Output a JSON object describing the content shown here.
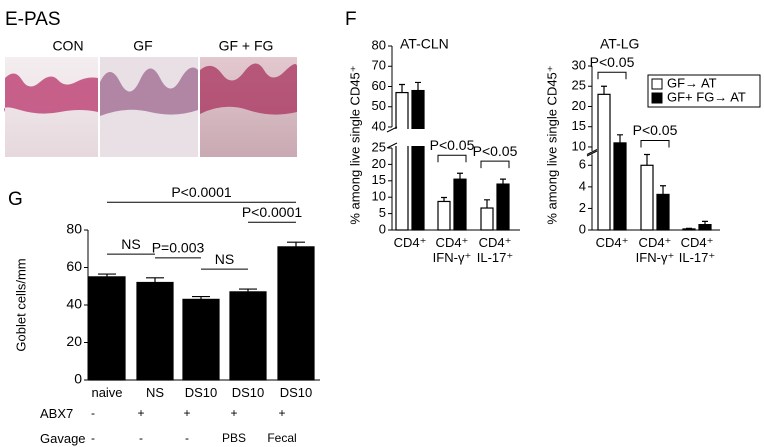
{
  "panel_e": {
    "label": "E-PAS",
    "images": [
      {
        "label": "CON"
      },
      {
        "label": "GF"
      },
      {
        "label": "GF + FG"
      }
    ]
  },
  "chart_data": [
    {
      "type": "bar",
      "panel_label": "F",
      "title": "AT-CLN",
      "y_label": "% among live single CD45⁺",
      "categories": [
        "CD4⁺",
        "CD4⁺\nIFN-γ⁺",
        "CD4⁺\nIL-17⁺"
      ],
      "series": [
        {
          "color": "#ffffff",
          "values": [
            57,
            8.7,
            6.7
          ],
          "errors": [
            4,
            1.2,
            2.5
          ]
        },
        {
          "color": "#000000",
          "values": [
            58,
            15.5,
            14
          ],
          "errors": [
            4,
            1.8,
            1.5
          ]
        }
      ],
      "ylim": [
        0,
        80
      ],
      "yticks": [
        0,
        5,
        10,
        15,
        20,
        25,
        40,
        50,
        60,
        70,
        80
      ],
      "axis_break": [
        25,
        40
      ],
      "annotations": [
        {
          "label": "P<0.05",
          "from": 1,
          "to": 1
        },
        {
          "label": "P<0.05",
          "from": 2,
          "to": 2
        }
      ]
    },
    {
      "type": "bar",
      "title": "AT-LG",
      "y_label": "% among live single CD45⁺",
      "categories": [
        "CD4⁺",
        "CD4⁺\nIFN-γ⁺",
        "CD4⁺\nIL-17⁺"
      ],
      "series": [
        {
          "name": "GF→ AT",
          "color": "#ffffff",
          "values": [
            23,
            6,
            0.1
          ],
          "errors": [
            2,
            1,
            0.05
          ]
        },
        {
          "name": "GF+ FG→ AT",
          "color": "#000000",
          "values": [
            11,
            3.3,
            0.5
          ],
          "errors": [
            2,
            0.8,
            0.3
          ]
        }
      ],
      "ylim": [
        0,
        30
      ],
      "yticks": [
        0,
        2,
        4,
        6,
        10,
        15,
        20,
        25,
        30
      ],
      "axis_break": [
        7,
        9
      ],
      "legend": "upper right",
      "annotations": [
        {
          "label": "P<0.05",
          "from": 0,
          "to": 0
        },
        {
          "label": "P<0.05",
          "from": 1,
          "to": 1
        }
      ]
    },
    {
      "type": "bar",
      "panel_label": "G",
      "y_label": "Goblet cells/mm",
      "categories": [
        "naive",
        "NS",
        "DS10",
        "DS10",
        "DS10"
      ],
      "series": [
        {
          "color": "#000000",
          "values": [
            55,
            52,
            43,
            47,
            71
          ],
          "errors": [
            1.5,
            2.5,
            1.5,
            1.5,
            2.5
          ]
        }
      ],
      "ylim": [
        0,
        80
      ],
      "yticks": [
        0,
        20,
        40,
        60,
        80
      ],
      "rows": [
        {
          "label": "ABX7",
          "values": [
            "-",
            "+",
            "+",
            "+",
            "+"
          ]
        },
        {
          "label": "Gavage",
          "values": [
            "-",
            "-",
            "-",
            "PBS",
            "Fecal"
          ]
        }
      ],
      "annotations": [
        {
          "label": "NS",
          "from": 0,
          "to": 1
        },
        {
          "label": "P=0.003",
          "from": 1,
          "to": 2
        },
        {
          "label": "NS",
          "from": 2,
          "to": 3
        },
        {
          "label": "P<0.0001",
          "from": 3,
          "to": 4
        },
        {
          "label": "P<0.0001",
          "from": 0,
          "to": 4
        }
      ]
    }
  ]
}
